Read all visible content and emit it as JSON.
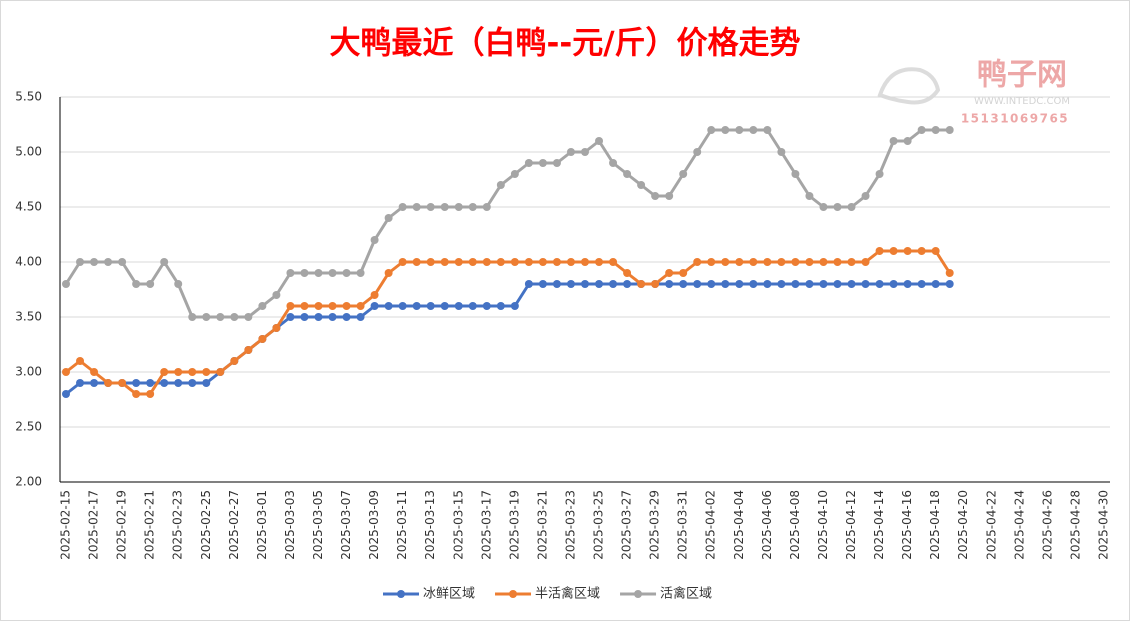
{
  "chart_data": {
    "type": "line",
    "title": "大鸭最近（白鸭--元/斤）价格走势",
    "watermark": {
      "name": "鸭子网",
      "site": "WWW.INTEDC.COM",
      "phone": "15131069765"
    },
    "categories": [
      "2025-02-15",
      null,
      "2025-02-17",
      null,
      "2025-02-19",
      null,
      "2025-02-21",
      null,
      "2025-02-23",
      null,
      "2025-02-25",
      null,
      "2025-02-27",
      null,
      "2025-03-01",
      null,
      "2025-03-03",
      null,
      "2025-03-05",
      null,
      "2025-03-07",
      null,
      "2025-03-09",
      null,
      "2025-03-11",
      null,
      "2025-03-13",
      null,
      "2025-03-15",
      null,
      "2025-03-17",
      null,
      "2025-03-19",
      null,
      "2025-03-21",
      null,
      "2025-03-23",
      null,
      "2025-03-25",
      null,
      "2025-03-27",
      null,
      "2025-03-29",
      null,
      "2025-03-31",
      null,
      "2025-04-02",
      null,
      "2025-04-04",
      null,
      "2025-04-06",
      null,
      "2025-04-08",
      null,
      "2025-04-10",
      null,
      "2025-04-12",
      null,
      "2025-04-14",
      null,
      "2025-04-16",
      null,
      "2025-04-18",
      null,
      "2025-04-20",
      null,
      "2025-04-22",
      null,
      "2025-04-24",
      null,
      "2025-04-26",
      null,
      "2025-04-28",
      null,
      "2025-04-30"
    ],
    "series": [
      {
        "name": "冰鲜区域",
        "color": "#4472c4",
        "values": [
          2.8,
          2.9,
          2.9,
          2.9,
          2.9,
          2.9,
          2.9,
          2.9,
          2.9,
          2.9,
          2.9,
          3.0,
          3.1,
          3.2,
          3.3,
          3.4,
          3.5,
          3.5,
          3.5,
          3.5,
          3.5,
          3.5,
          3.6,
          3.6,
          3.6,
          3.6,
          3.6,
          3.6,
          3.6,
          3.6,
          3.6,
          3.6,
          3.6,
          3.8,
          3.8,
          3.8,
          3.8,
          3.8,
          3.8,
          3.8,
          3.8,
          3.8,
          3.8,
          3.8,
          3.8,
          3.8,
          3.8,
          3.8,
          3.8,
          3.8,
          3.8,
          3.8,
          3.8,
          3.8,
          3.8,
          3.8,
          3.8,
          3.8,
          3.8,
          3.8,
          3.8,
          3.8,
          3.8,
          3.8,
          null,
          null,
          null,
          null,
          null,
          null,
          null,
          null,
          null,
          null,
          null
        ]
      },
      {
        "name": "半活禽区域",
        "color": "#ed7d31",
        "values": [
          3.0,
          3.1,
          3.0,
          2.9,
          2.9,
          2.8,
          2.8,
          3.0,
          3.0,
          3.0,
          3.0,
          3.0,
          3.1,
          3.2,
          3.3,
          3.4,
          3.6,
          3.6,
          3.6,
          3.6,
          3.6,
          3.6,
          3.7,
          3.9,
          4.0,
          4.0,
          4.0,
          4.0,
          4.0,
          4.0,
          4.0,
          4.0,
          4.0,
          4.0,
          4.0,
          4.0,
          4.0,
          4.0,
          4.0,
          4.0,
          3.9,
          3.8,
          3.8,
          3.9,
          3.9,
          4.0,
          4.0,
          4.0,
          4.0,
          4.0,
          4.0,
          4.0,
          4.0,
          4.0,
          4.0,
          4.0,
          4.0,
          4.0,
          4.1,
          4.1,
          4.1,
          4.1,
          4.1,
          3.9,
          null,
          null,
          null,
          null,
          null,
          null,
          null,
          null,
          null,
          null,
          null
        ]
      },
      {
        "name": "活禽区域",
        "color": "#a5a5a5",
        "values": [
          3.8,
          4.0,
          4.0,
          4.0,
          4.0,
          3.8,
          3.8,
          4.0,
          3.8,
          3.5,
          3.5,
          3.5,
          3.5,
          3.5,
          3.6,
          3.7,
          3.9,
          3.9,
          3.9,
          3.9,
          3.9,
          3.9,
          4.2,
          4.4,
          4.5,
          4.5,
          4.5,
          4.5,
          4.5,
          4.5,
          4.5,
          4.7,
          4.8,
          4.9,
          4.9,
          4.9,
          5.0,
          5.0,
          5.1,
          4.9,
          4.8,
          4.7,
          4.6,
          4.6,
          4.8,
          5.0,
          5.2,
          5.2,
          5.2,
          5.2,
          5.2,
          5.0,
          4.8,
          4.6,
          4.5,
          4.5,
          4.5,
          4.6,
          4.8,
          5.1,
          5.1,
          5.2,
          5.2,
          5.2,
          null,
          null,
          null,
          null,
          null,
          null,
          null,
          null,
          null,
          null,
          null
        ]
      }
    ],
    "ylim": [
      2.0,
      5.5
    ],
    "yticks": [
      {
        "value": 2.0,
        "label": "2.00"
      },
      {
        "value": 2.5,
        "label": "2.50"
      },
      {
        "value": 3.0,
        "label": "3.00"
      },
      {
        "value": 3.5,
        "label": "3.50"
      },
      {
        "value": 4.0,
        "label": "4.00"
      },
      {
        "value": 4.5,
        "label": "4.50"
      },
      {
        "value": 5.0,
        "label": "5.00"
      },
      {
        "value": 5.5,
        "label": "5.50"
      }
    ],
    "grid": true,
    "legend": "bottom"
  }
}
